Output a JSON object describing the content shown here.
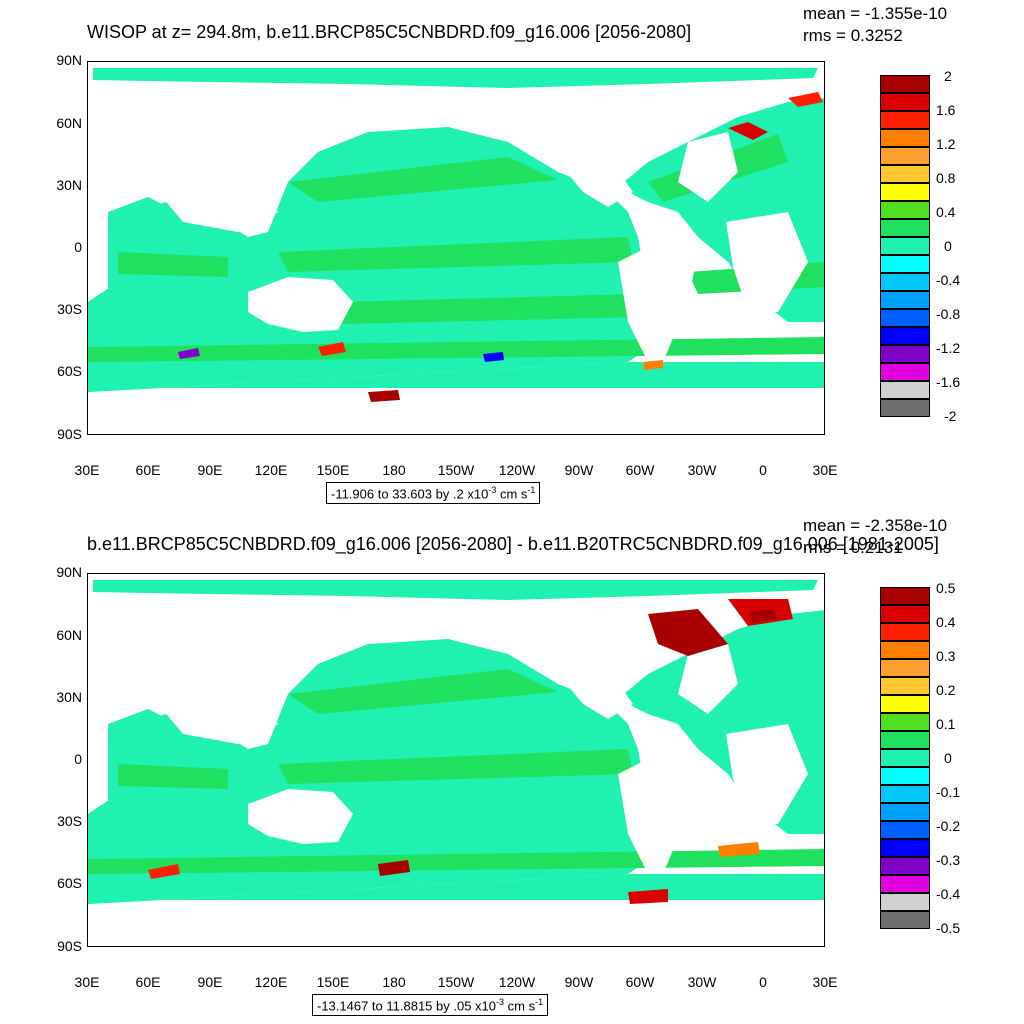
{
  "panels": [
    {
      "title": "WISOP at z= 294.8m, b.e11.BRCP85C5CNBDRD.f09_g16.006 [2056-2080]",
      "mean": "mean = -1.355e-10",
      "rms": "rms = 0.3252",
      "range_text": "-11.906 to 33.603 by .2 x10",
      "range_exp": "-3",
      "range_unit": " cm s",
      "range_unit_exp": "-1",
      "colorbar_labels": [
        "2",
        "1.6",
        "1.2",
        "0.8",
        "0.4",
        "0",
        "-0.4",
        "-0.8",
        "-1.2",
        "-1.6",
        "-2"
      ]
    },
    {
      "title": "b.e11.BRCP85C5CNBDRD.f09_g16.006 [2056-2080] - b.e11.B20TRC5CNBDRD.f09_g16.006 [1981-2005]",
      "mean": "mean = -2.358e-10",
      "rms": "rms = 0.2131",
      "range_text": "-13.1467 to 11.8815 by .05 x10",
      "range_exp": "-3",
      "range_unit": " cm s",
      "range_unit_exp": "-1",
      "colorbar_labels": [
        "0.5",
        "0.4",
        "0.3",
        "0.2",
        "0.1",
        "0",
        "-0.1",
        "-0.2",
        "-0.3",
        "-0.4",
        "-0.5"
      ]
    }
  ],
  "lat_labels": [
    "90N",
    "60N",
    "30N",
    "0",
    "30S",
    "60S",
    "90S"
  ],
  "lon_labels": [
    "30E",
    "60E",
    "90E",
    "120E",
    "150E",
    "180",
    "150W",
    "120W",
    "90W",
    "60W",
    "30W",
    "0",
    "30E"
  ],
  "colorbar_colors": [
    "#a80000",
    "#d80000",
    "#ff2000",
    "#ff8000",
    "#ffa030",
    "#ffc830",
    "#ffff00",
    "#50e020",
    "#20e060",
    "#20f0b0",
    "#00ffff",
    "#00c8ff",
    "#00a0ff",
    "#0060ff",
    "#0000ff",
    "#8000c8",
    "#e000e0",
    "#d0d0d0",
    "#707070"
  ],
  "colors": {
    "ocean_main": "#20f0b0",
    "ocean_band": "#20e060",
    "land": "#ffffff"
  }
}
